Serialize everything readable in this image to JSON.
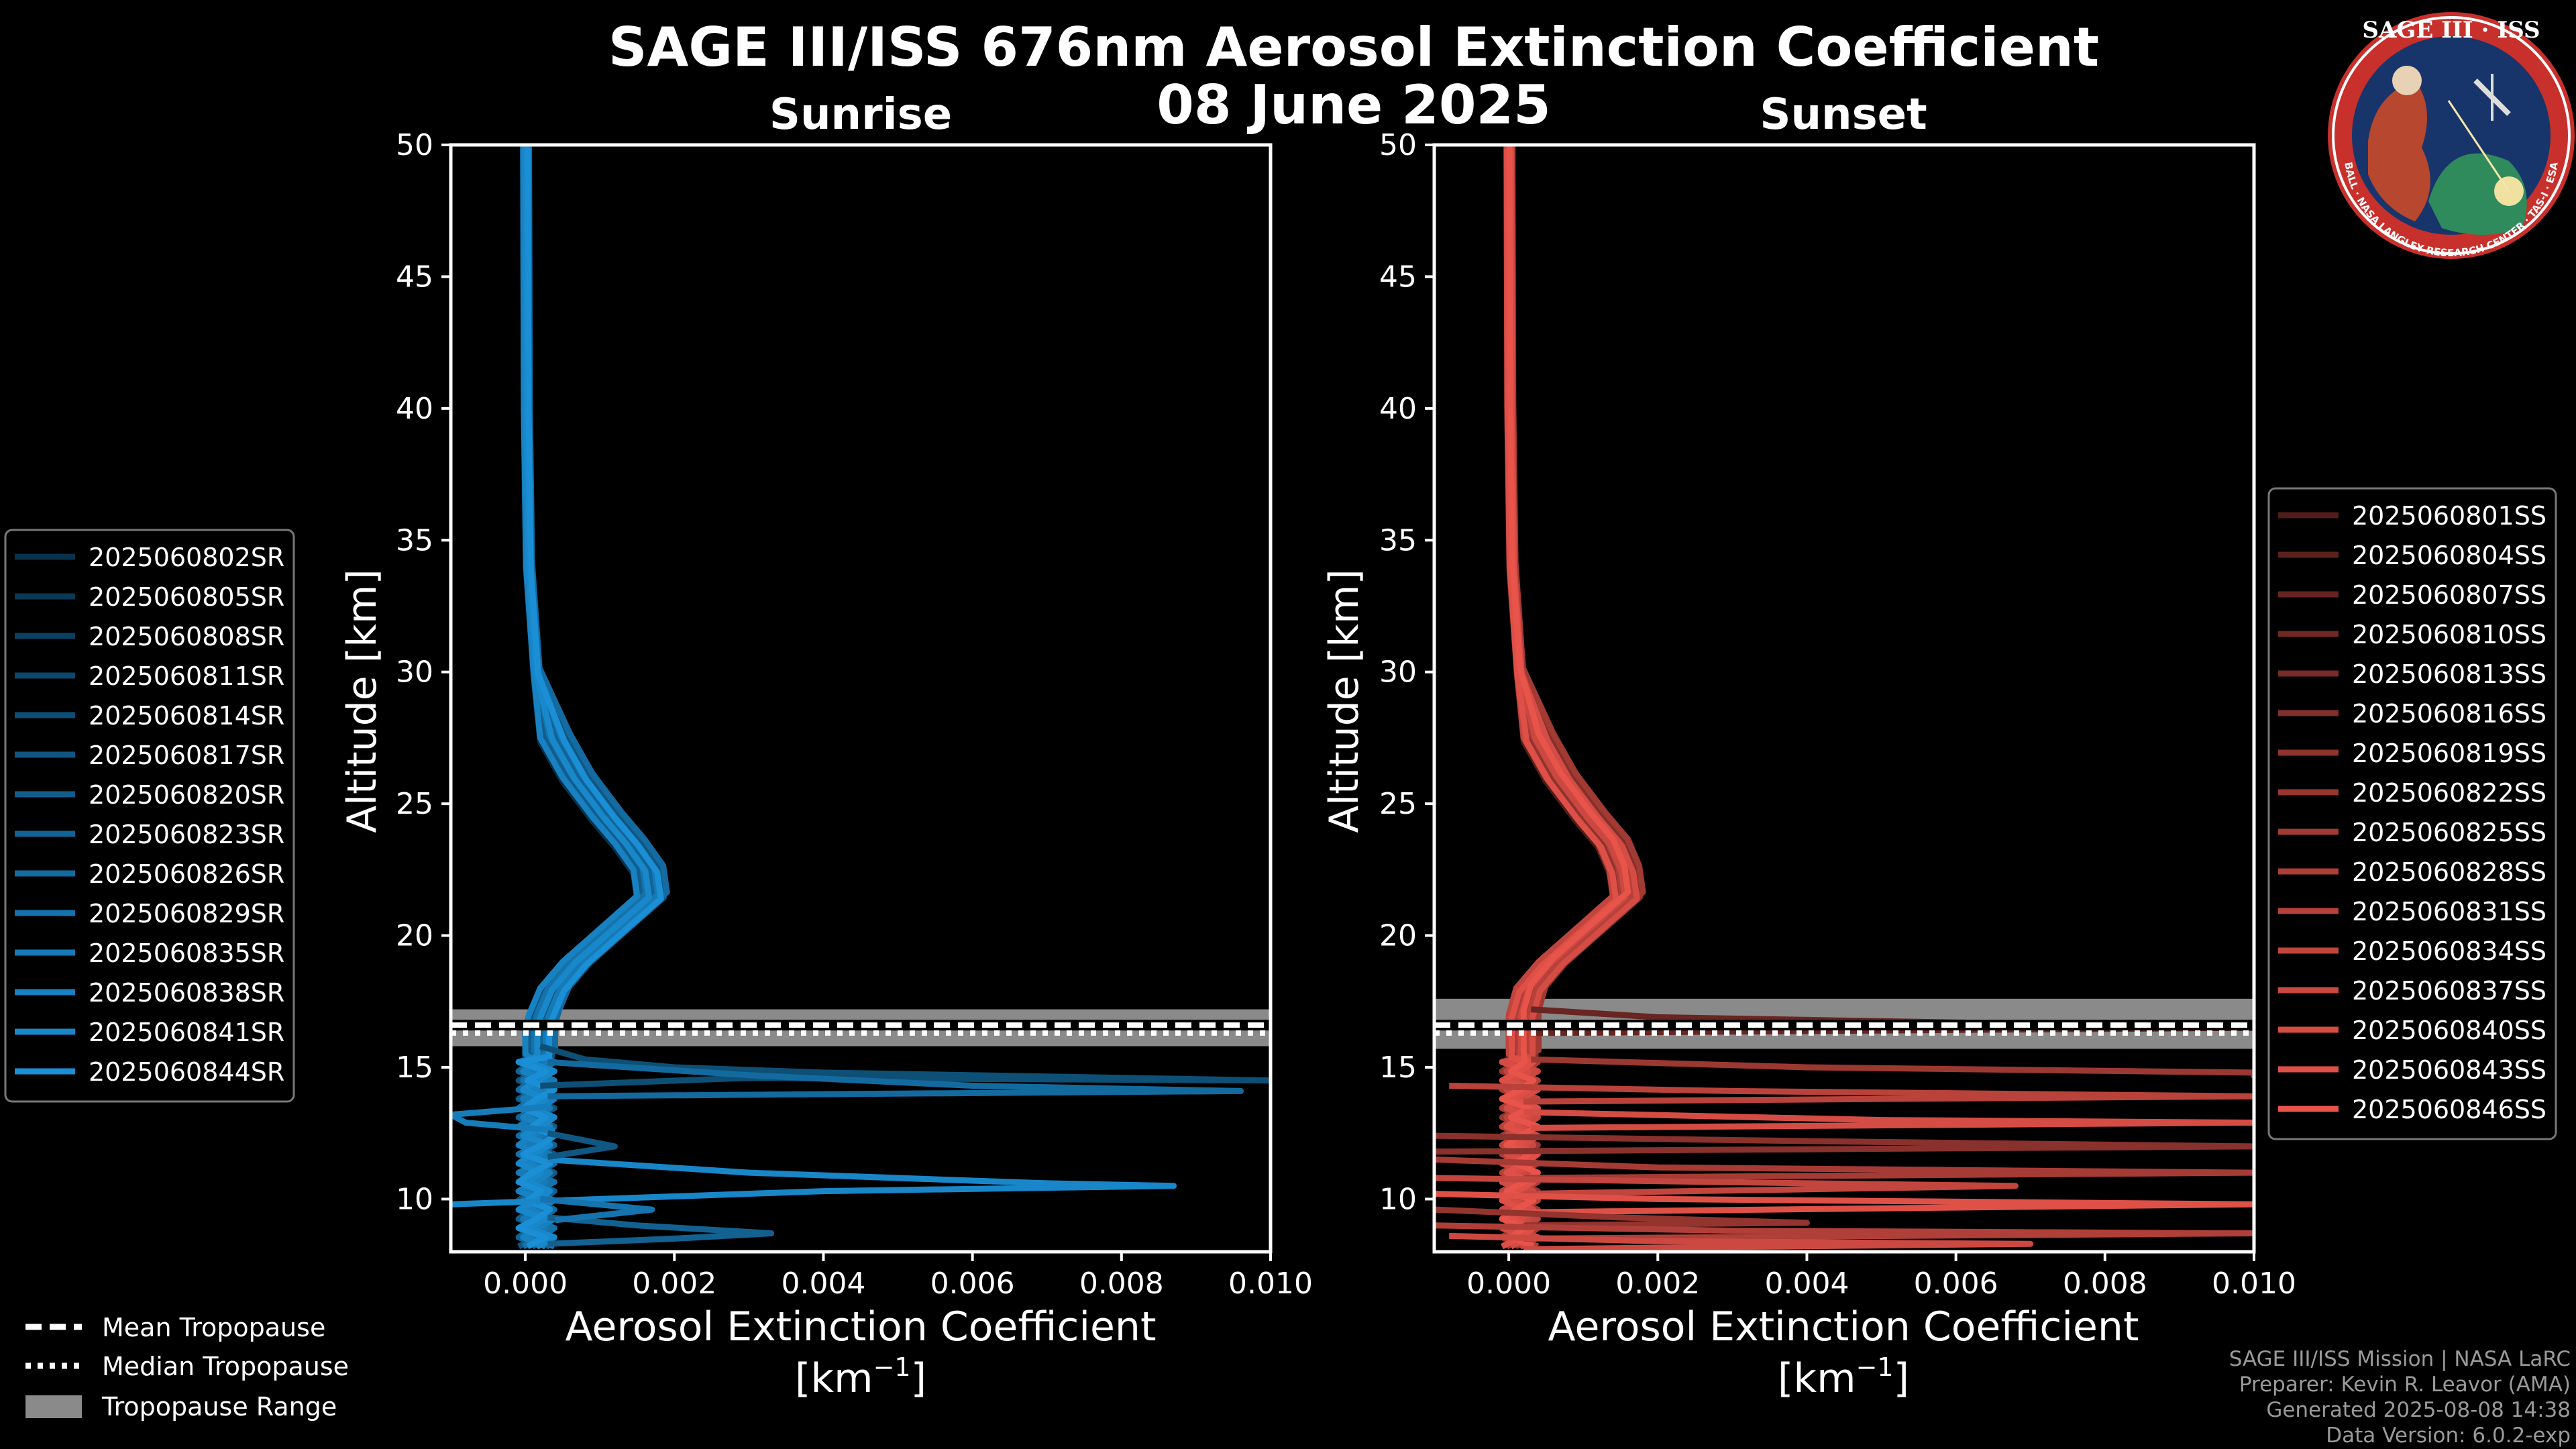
{
  "figure": {
    "title_line1": "SAGE III/ISS 676nm Aerosol Extinction Coefficient",
    "title_line2": "08 June 2025"
  },
  "logo": {
    "text": "SAGE III · ISS",
    "ring_text": "BALL · NASA LANGLEY RESEARCH CENTER · TAS-I · ESA"
  },
  "credits": {
    "line1": "SAGE III/ISS Mission | NASA LaRC",
    "line2": "Preparer: Kevin R. Leavor (AMA)",
    "line3": "Generated 2025-08-08 14:38",
    "line4": "Data Version: 6.0.2-exp"
  },
  "tropopause_legend": {
    "mean": "Mean Tropopause",
    "median": "Median Tropopause",
    "range": "Tropopause Range"
  },
  "chart_data": [
    {
      "type": "line",
      "title": "Sunrise",
      "xlabel": "Aerosol Extinction Coefficient",
      "xunit": "[km",
      "xunit_sup": "−1",
      "xunit_close": "]",
      "ylabel": "Altitude [km]",
      "xlim": [
        -0.001,
        0.01
      ],
      "ylim": [
        8,
        50
      ],
      "xticks": [
        0.0,
        0.002,
        0.004,
        0.006,
        0.008,
        0.01
      ],
      "xtick_labels": [
        "0.000",
        "0.002",
        "0.004",
        "0.006",
        "0.008",
        "0.010"
      ],
      "yticks": [
        10,
        15,
        20,
        25,
        30,
        35,
        40,
        45,
        50
      ],
      "tropopause": {
        "mean": 16.6,
        "median": 16.3,
        "min": 15.8,
        "max": 17.2
      },
      "color_base": "#1a8fd6",
      "legend_position": "left",
      "series_names": [
        "2025060802SR",
        "2025060805SR",
        "2025060808SR",
        "2025060811SR",
        "2025060814SR",
        "2025060817SR",
        "2025060820SR",
        "2025060823SR",
        "2025060826SR",
        "2025060829SR",
        "2025060835SR",
        "2025060838SR",
        "2025060841SR",
        "2025060844SR"
      ],
      "background_profile": {
        "alt": [
          50,
          40,
          34,
          30,
          27.5,
          26,
          24.5,
          23.5,
          22.5,
          21.5,
          21,
          20,
          19,
          18,
          17,
          16.5,
          16,
          15.5
        ],
        "value": [
          1e-05,
          2e-05,
          5e-05,
          0.00015,
          0.0004,
          0.0007,
          0.0011,
          0.0014,
          0.00165,
          0.0017,
          0.0015,
          0.0011,
          0.0007,
          0.0004,
          0.00025,
          0.0002,
          0.0002,
          0.0002
        ]
      },
      "spikes": [
        {
          "alt": [
            15.8,
            15.3,
            15.0,
            14.8,
            14.5,
            14.6,
            14.3
          ],
          "value": [
            0.0002,
            0.0008,
            0.002,
            0.004,
            0.01,
            0.003,
            0.0002
          ]
        },
        {
          "alt": [
            15.2,
            14.7,
            14.3,
            14.1,
            13.9
          ],
          "value": [
            0.0003,
            0.003,
            0.006,
            0.0096,
            0.0003
          ]
        },
        {
          "alt": [
            11.5,
            11.0,
            10.6,
            10.5,
            10.3,
            10.0,
            9.8
          ],
          "value": [
            0.0003,
            0.003,
            0.007,
            0.0087,
            0.004,
            0.001,
            -0.001
          ]
        },
        {
          "alt": [
            9.3,
            9.0,
            8.7,
            8.5,
            8.3
          ],
          "value": [
            0.0003,
            0.0015,
            0.0033,
            0.002,
            0.0003
          ]
        },
        {
          "alt": [
            13.5,
            13.2,
            12.9,
            12.6
          ],
          "value": [
            0.0003,
            -0.001,
            -0.0008,
            0.0004
          ]
        },
        {
          "alt": [
            12.5,
            12.0,
            11.6
          ],
          "value": [
            0.0003,
            0.0012,
            0.0003
          ]
        },
        {
          "alt": [
            10.0,
            9.6,
            9.2
          ],
          "value": [
            0.0002,
            0.0017,
            0.0004
          ]
        }
      ]
    },
    {
      "type": "line",
      "title": "Sunset",
      "xlabel": "Aerosol Extinction Coefficient",
      "xunit": "[km",
      "xunit_sup": "−1",
      "xunit_close": "]",
      "ylabel": "Altitude [km]",
      "xlim": [
        -0.001,
        0.01
      ],
      "ylim": [
        8,
        50
      ],
      "xticks": [
        0.0,
        0.002,
        0.004,
        0.006,
        0.008,
        0.01
      ],
      "xtick_labels": [
        "0.000",
        "0.002",
        "0.004",
        "0.006",
        "0.008",
        "0.010"
      ],
      "yticks": [
        10,
        15,
        20,
        25,
        30,
        35,
        40,
        45,
        50
      ],
      "tropopause": {
        "mean": 16.6,
        "median": 16.3,
        "min": 15.7,
        "max": 17.6
      },
      "color_base": "#e8534a",
      "legend_position": "right",
      "series_names": [
        "2025060801SS",
        "2025060804SS",
        "2025060807SS",
        "2025060810SS",
        "2025060813SS",
        "2025060816SS",
        "2025060819SS",
        "2025060822SS",
        "2025060825SS",
        "2025060828SS",
        "2025060831SS",
        "2025060834SS",
        "2025060837SS",
        "2025060840SS",
        "2025060843SS",
        "2025060846SS"
      ],
      "background_profile": {
        "alt": [
          50,
          40,
          34,
          30,
          27.5,
          26,
          24.5,
          23.5,
          22.5,
          21.5,
          21,
          20,
          19,
          18,
          17,
          16.5,
          16,
          15.5
        ],
        "value": [
          1e-05,
          2e-05,
          5e-05,
          0.00015,
          0.0004,
          0.0007,
          0.0011,
          0.0014,
          0.00155,
          0.0016,
          0.0014,
          0.001,
          0.0006,
          0.0003,
          0.0002,
          0.0002,
          0.0002,
          0.0002
        ]
      },
      "spikes": [
        {
          "alt": [
            17.2,
            16.9,
            16.7,
            16.5,
            16.3
          ],
          "value": [
            0.0003,
            0.002,
            0.006,
            0.01,
            0.0003
          ]
        },
        {
          "alt": [
            15.3,
            15.0,
            14.8,
            14.6
          ],
          "value": [
            0.0003,
            0.004,
            0.01,
            0.01
          ]
        },
        {
          "alt": [
            14.3,
            14.1,
            13.9,
            13.7
          ],
          "value": [
            -0.0008,
            0.003,
            0.01,
            0.0002
          ]
        },
        {
          "alt": [
            13.3,
            13.0,
            12.9,
            12.7
          ],
          "value": [
            0.0002,
            0.005,
            0.01,
            0.0003
          ]
        },
        {
          "alt": [
            12.4,
            12.2,
            12.0,
            11.8
          ],
          "value": [
            -0.001,
            0.004,
            0.01,
            -0.001
          ]
        },
        {
          "alt": [
            11.5,
            11.2,
            11.0,
            10.8
          ],
          "value": [
            -0.001,
            0.002,
            0.01,
            0.0002
          ]
        },
        {
          "alt": [
            10.8,
            10.6,
            10.5,
            10.2
          ],
          "value": [
            -0.001,
            0.004,
            0.0068,
            0.0002
          ]
        },
        {
          "alt": [
            10.2,
            10.0,
            9.8,
            9.5
          ],
          "value": [
            -0.001,
            0.002,
            0.01,
            0.0002
          ]
        },
        {
          "alt": [
            9.6,
            9.3,
            9.1,
            9.0
          ],
          "value": [
            -0.001,
            0.0015,
            0.004,
            0.0002
          ]
        },
        {
          "alt": [
            9.0,
            8.8,
            8.7,
            8.5
          ],
          "value": [
            -0.001,
            0.003,
            0.01,
            0.0002
          ]
        },
        {
          "alt": [
            8.6,
            8.4,
            8.3,
            8.1
          ],
          "value": [
            -0.0008,
            0.002,
            0.007,
            0.0002
          ]
        }
      ]
    }
  ]
}
